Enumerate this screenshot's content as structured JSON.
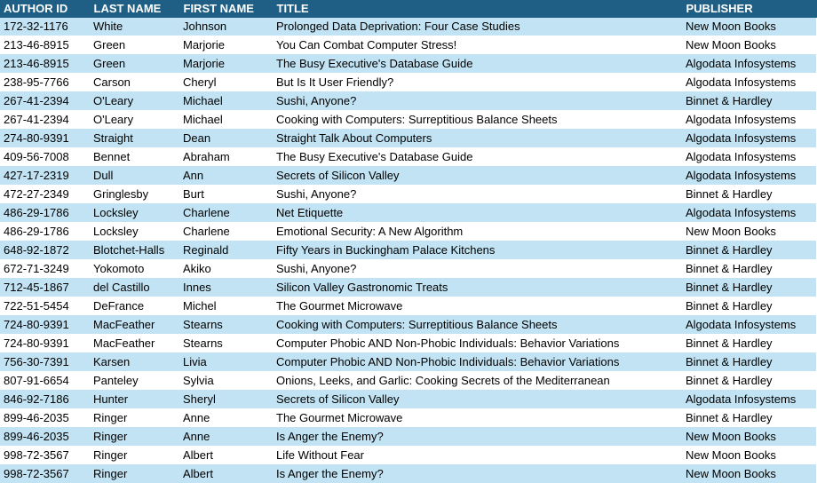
{
  "headers": [
    "AUTHOR ID",
    "LAST NAME",
    "FIRST NAME",
    "TITLE",
    "PUBLISHER"
  ],
  "rows": [
    [
      "172-32-1176",
      "White",
      "Johnson",
      "Prolonged Data Deprivation: Four Case Studies",
      "New Moon Books"
    ],
    [
      "213-46-8915",
      "Green",
      "Marjorie",
      "You Can Combat Computer Stress!",
      "New Moon Books"
    ],
    [
      "213-46-8915",
      "Green",
      "Marjorie",
      "The Busy Executive's Database Guide",
      "Algodata Infosystems"
    ],
    [
      "238-95-7766",
      "Carson",
      "Cheryl",
      "But Is It User Friendly?",
      "Algodata Infosystems"
    ],
    [
      "267-41-2394",
      "O'Leary",
      "Michael",
      "Sushi, Anyone?",
      "Binnet & Hardley"
    ],
    [
      "267-41-2394",
      "O'Leary",
      "Michael",
      "Cooking with Computers: Surreptitious Balance Sheets",
      "Algodata Infosystems"
    ],
    [
      "274-80-9391",
      "Straight",
      "Dean",
      "Straight Talk About Computers",
      "Algodata Infosystems"
    ],
    [
      "409-56-7008",
      "Bennet",
      "Abraham",
      "The Busy Executive's Database Guide",
      "Algodata Infosystems"
    ],
    [
      "427-17-2319",
      "Dull",
      "Ann",
      "Secrets of Silicon Valley",
      "Algodata Infosystems"
    ],
    [
      "472-27-2349",
      "Gringlesby",
      "Burt",
      "Sushi, Anyone?",
      "Binnet & Hardley"
    ],
    [
      "486-29-1786",
      "Locksley",
      "Charlene",
      "Net Etiquette",
      "Algodata Infosystems"
    ],
    [
      "486-29-1786",
      "Locksley",
      "Charlene",
      "Emotional Security: A New Algorithm",
      "New Moon Books"
    ],
    [
      "648-92-1872",
      "Blotchet-Halls",
      "Reginald",
      "Fifty Years in Buckingham Palace Kitchens",
      "Binnet & Hardley"
    ],
    [
      "672-71-3249",
      "Yokomoto",
      "Akiko",
      "Sushi, Anyone?",
      "Binnet & Hardley"
    ],
    [
      "712-45-1867",
      "del Castillo",
      "Innes",
      "Silicon Valley Gastronomic Treats",
      "Binnet & Hardley"
    ],
    [
      "722-51-5454",
      "DeFrance",
      "Michel",
      "The Gourmet Microwave",
      "Binnet & Hardley"
    ],
    [
      "724-80-9391",
      "MacFeather",
      "Stearns",
      "Cooking with Computers: Surreptitious Balance Sheets",
      "Algodata Infosystems"
    ],
    [
      "724-80-9391",
      "MacFeather",
      "Stearns",
      "Computer Phobic AND Non-Phobic Individuals: Behavior Variations",
      "Binnet & Hardley"
    ],
    [
      "756-30-7391",
      "Karsen",
      "Livia",
      "Computer Phobic AND Non-Phobic Individuals: Behavior Variations",
      "Binnet & Hardley"
    ],
    [
      "807-91-6654",
      "Panteley",
      "Sylvia",
      "Onions, Leeks, and Garlic: Cooking Secrets of the Mediterranean",
      "Binnet & Hardley"
    ],
    [
      "846-92-7186",
      "Hunter",
      "Sheryl",
      "Secrets of Silicon Valley",
      "Algodata Infosystems"
    ],
    [
      "899-46-2035",
      "Ringer",
      "Anne",
      "The Gourmet Microwave",
      "Binnet & Hardley"
    ],
    [
      "899-46-2035",
      "Ringer",
      "Anne",
      "Is Anger the Enemy?",
      "New Moon Books"
    ],
    [
      "998-72-3567",
      "Ringer",
      "Albert",
      "Life Without Fear",
      "New Moon Books"
    ],
    [
      "998-72-3567",
      "Ringer",
      "Albert",
      "Is Anger the Enemy?",
      "New Moon Books"
    ]
  ],
  "colors": {
    "header_bg": "#1f5f86",
    "header_text": "#ffffff",
    "band_row": "#c2e3f3",
    "plain_row": "#ffffff"
  }
}
